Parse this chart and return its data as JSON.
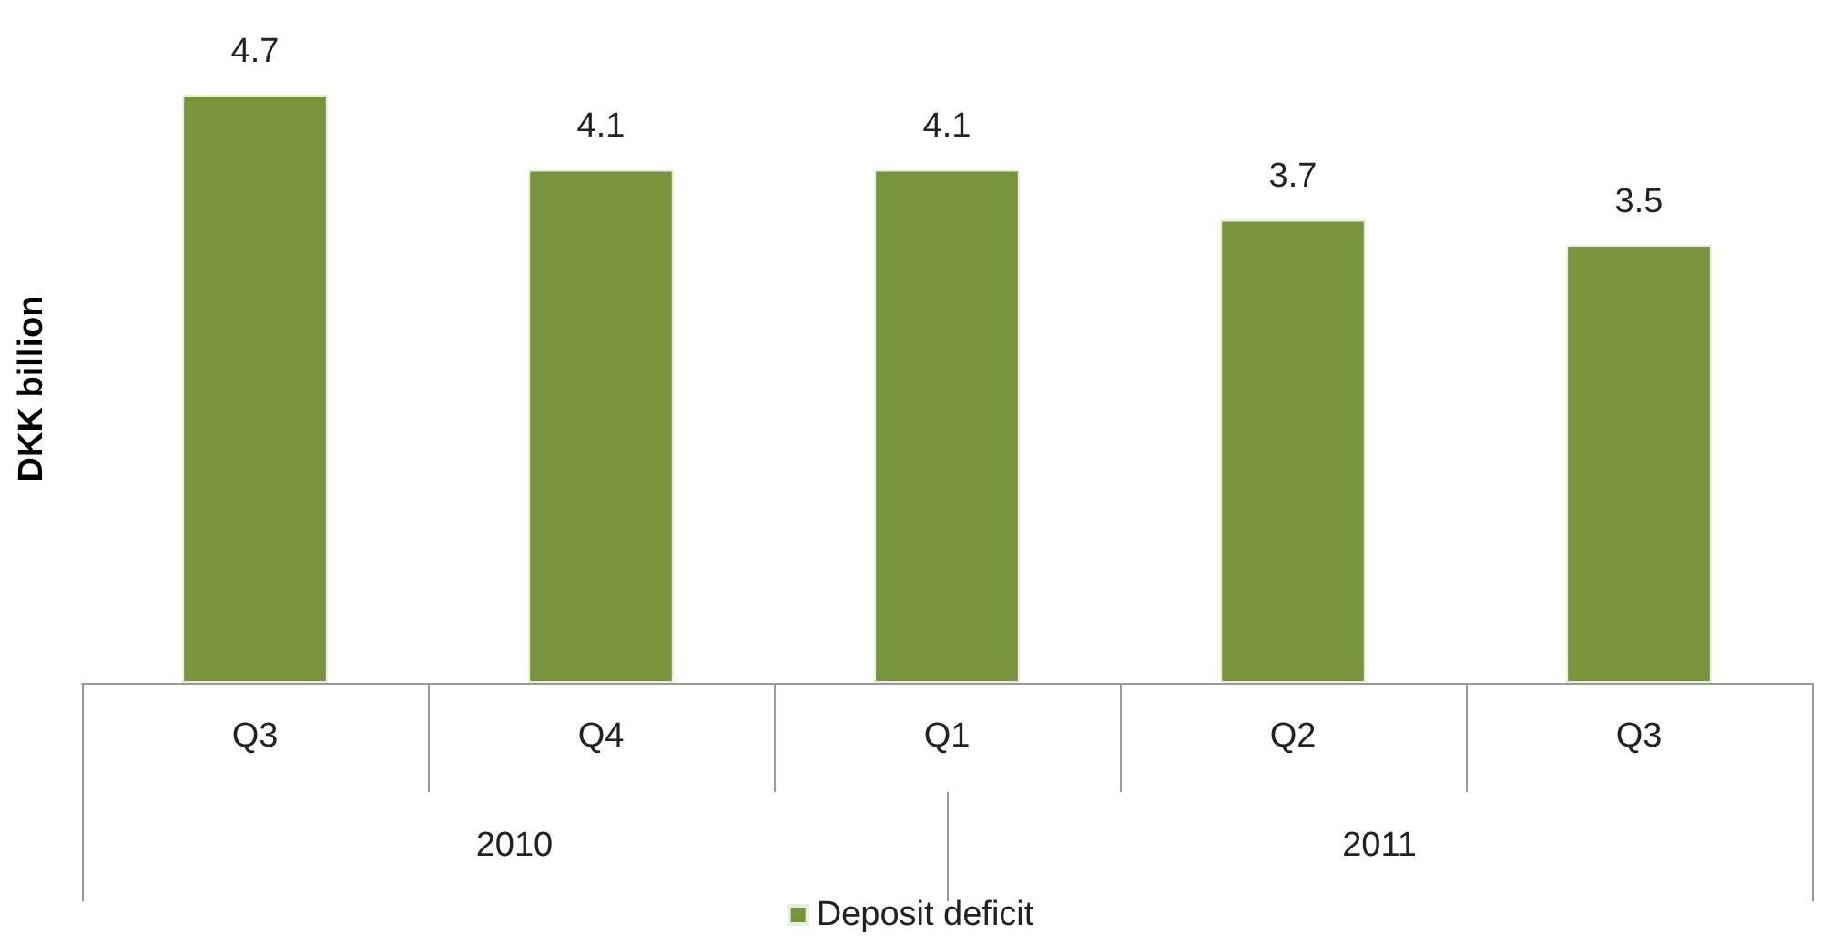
{
  "chart_data": {
    "type": "bar",
    "ylabel": "DKK billion",
    "categories": [
      "Q3",
      "Q4",
      "Q1",
      "Q2",
      "Q3"
    ],
    "series": [
      {
        "name": "Deposit deficit",
        "color": "#77933c",
        "values": [
          4.7,
          4.1,
          4.1,
          3.7,
          3.5
        ]
      }
    ],
    "annotations": [
      "2010",
      "2011"
    ],
    "data_labels": true,
    "grid": false,
    "legend": "bottom"
  }
}
